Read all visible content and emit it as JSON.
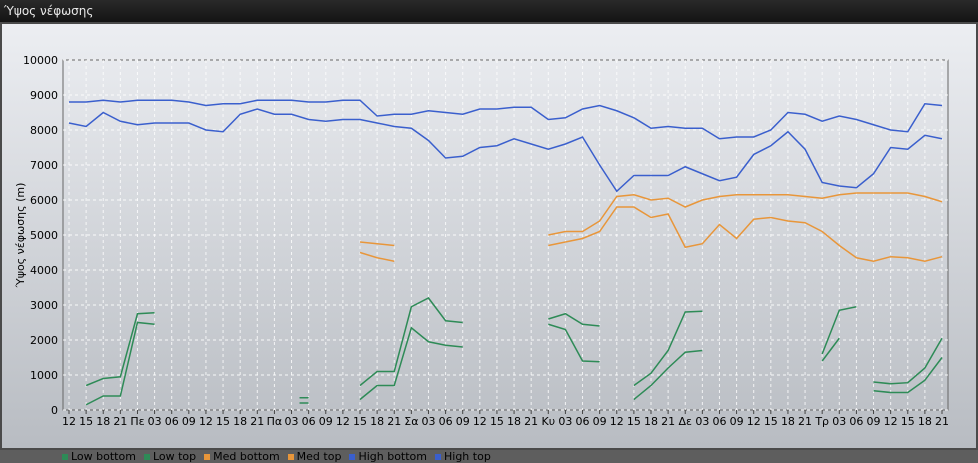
{
  "window": {
    "title": "Ύψος νέφωσης"
  },
  "chart_data": {
    "type": "line",
    "title": "",
    "ylabel": "Ύψος νέφωσης (m)",
    "xlabel": "",
    "ylim": [
      0,
      10000
    ],
    "yticks": [
      0,
      1000,
      2000,
      3000,
      4000,
      5000,
      6000,
      7000,
      8000,
      9000,
      10000
    ],
    "grid": true,
    "legend_position": "bottom",
    "categories": [
      "12",
      "15",
      "18",
      "21",
      "Πε",
      "03",
      "06",
      "09",
      "12",
      "15",
      "18",
      "21",
      "Πα",
      "03",
      "06",
      "09",
      "12",
      "15",
      "18",
      "21",
      "Σα",
      "03",
      "06",
      "09",
      "12",
      "15",
      "18",
      "21",
      "Κυ",
      "03",
      "06",
      "09",
      "12",
      "15",
      "18",
      "21",
      "Δε",
      "03",
      "06",
      "09",
      "12",
      "15",
      "18",
      "21",
      "Τρ",
      "03",
      "06",
      "09",
      "12",
      "15",
      "18",
      "21"
    ],
    "series": [
      {
        "name": "Low bottom",
        "color": "#2e8b57",
        "values": [
          null,
          150,
          400,
          400,
          2500,
          2450,
          null,
          null,
          null,
          null,
          null,
          null,
          null,
          null,
          null,
          null,
          null,
          300,
          700,
          700,
          2350,
          1950,
          1850,
          1800,
          null,
          null,
          null,
          null,
          2450,
          2300,
          1400,
          1380,
          null,
          300,
          700,
          1200,
          1650,
          1700,
          null,
          null,
          null,
          null,
          null,
          null,
          1400,
          2050,
          null,
          null,
          null,
          null,
          null,
          null
        ]
      },
      {
        "name": "Low top",
        "color": "#2e8b57",
        "values": [
          null,
          700,
          900,
          950,
          2750,
          2780,
          null,
          null,
          null,
          null,
          null,
          null,
          null,
          null,
          null,
          null,
          null,
          700,
          1100,
          1100,
          2950,
          3200,
          2550,
          2500,
          null,
          null,
          null,
          null,
          2600,
          2750,
          2450,
          2400,
          null,
          700,
          1050,
          1700,
          2800,
          2820,
          null,
          null,
          null,
          null,
          null,
          null,
          1600,
          2850,
          2950,
          null,
          null,
          null,
          null,
          null
        ]
      },
      {
        "name": "Low bottom",
        "color": "#2e8b57",
        "values": [
          null,
          null,
          null,
          null,
          null,
          null,
          null,
          null,
          null,
          null,
          null,
          null,
          null,
          null,
          null,
          null,
          null,
          null,
          null,
          null,
          null,
          null,
          null,
          null,
          null,
          null,
          null,
          null,
          null,
          null,
          null,
          null,
          null,
          null,
          null,
          null,
          null,
          null,
          null,
          null,
          null,
          null,
          null,
          null,
          null,
          null,
          null,
          550,
          500,
          500,
          850,
          1500
        ]
      },
      {
        "name": "Low top",
        "color": "#2e8b57",
        "values": [
          null,
          null,
          null,
          null,
          null,
          null,
          null,
          null,
          null,
          null,
          null,
          null,
          null,
          null,
          null,
          null,
          null,
          null,
          null,
          null,
          null,
          null,
          null,
          null,
          null,
          null,
          null,
          null,
          null,
          null,
          null,
          null,
          null,
          null,
          null,
          null,
          null,
          null,
          null,
          null,
          null,
          null,
          null,
          null,
          null,
          null,
          null,
          800,
          750,
          780,
          1200,
          2050
        ]
      },
      {
        "name": "Low bottom",
        "color": "#2e8b57",
        "values": [
          null,
          null,
          null,
          null,
          null,
          null,
          null,
          null,
          null,
          null,
          null,
          null,
          null,
          null,
          null,
          null,
          null,
          null,
          null,
          null,
          null,
          null,
          null,
          null,
          null,
          null,
          null,
          null,
          null,
          null,
          null,
          null,
          null,
          null,
          null,
          null,
          null,
          null,
          null,
          null,
          null,
          null,
          null,
          null,
          null,
          null,
          null,
          null,
          null,
          null,
          null,
          null
        ]
      },
      {
        "name": "Low top",
        "color": "#2e8b57",
        "values": [
          null,
          null,
          null,
          null,
          null,
          null,
          null,
          null,
          null,
          null,
          null,
          null,
          null,
          null,
          null,
          null,
          null,
          null,
          null,
          null,
          null,
          null,
          null,
          null,
          null,
          null,
          null,
          null,
          null,
          null,
          null,
          null,
          null,
          null,
          null,
          null,
          null,
          null,
          null,
          null,
          null,
          null,
          null,
          null,
          null,
          null,
          null,
          null,
          null,
          null,
          null,
          null
        ]
      },
      {
        "name": "Low bottom",
        "color": "#2e8b57",
        "values": [
          null,
          null,
          null,
          null,
          null,
          null,
          null,
          null,
          null,
          null,
          null,
          null,
          null,
          null,
          null,
          null,
          null,
          null,
          null,
          null,
          null,
          null,
          null,
          null,
          null,
          null,
          null,
          null,
          null,
          null,
          null,
          null,
          null,
          null,
          null,
          null,
          null,
          null,
          null,
          null,
          null,
          null,
          null,
          null,
          null,
          null,
          null,
          null,
          null,
          null,
          null,
          null
        ]
      },
      {
        "name": "Med bottom",
        "color": "#e8963a",
        "values": [
          null,
          null,
          null,
          null,
          null,
          null,
          null,
          null,
          null,
          null,
          null,
          null,
          null,
          null,
          null,
          null,
          null,
          4500,
          4350,
          4250,
          null,
          null,
          null,
          null,
          null,
          null,
          null,
          null,
          4700,
          4800,
          4900,
          5100,
          5800,
          5800,
          5500,
          5600,
          4650,
          4750,
          5300,
          4900,
          5450,
          5500,
          5400,
          5350,
          5100,
          4700,
          4350,
          4250,
          4380,
          4350,
          4250,
          4380
        ]
      },
      {
        "name": "Med top",
        "color": "#e8963a",
        "values": [
          null,
          null,
          null,
          null,
          null,
          null,
          null,
          null,
          null,
          null,
          null,
          null,
          null,
          null,
          null,
          null,
          null,
          4800,
          4750,
          4700,
          null,
          null,
          null,
          null,
          null,
          null,
          null,
          null,
          5000,
          5100,
          5100,
          5400,
          6100,
          6150,
          6000,
          6050,
          5800,
          6000,
          6100,
          6150,
          6150,
          6150,
          6150,
          6100,
          6050,
          6150,
          6200,
          6200,
          6200,
          6200,
          6100,
          5950
        ]
      },
      {
        "name": "High bottom",
        "color": "#3a5fcd",
        "values": [
          8200,
          8100,
          8500,
          8250,
          8150,
          8200,
          8200,
          8200,
          8000,
          7950,
          8450,
          8600,
          8450,
          8450,
          8300,
          8250,
          8300,
          8300,
          8200,
          8100,
          8050,
          7700,
          7200,
          7250,
          7500,
          7550,
          7750,
          7600,
          7450,
          7600,
          7800,
          7000,
          6250,
          6700,
          6700,
          6700,
          6950,
          6750,
          6550,
          6650,
          7300,
          7550,
          7950,
          7450,
          6500,
          6400,
          6350,
          6750,
          7500,
          7450,
          7850,
          7750
        ]
      },
      {
        "name": "High top",
        "color": "#3a5fcd",
        "values": [
          8800,
          8800,
          8850,
          8800,
          8850,
          8850,
          8850,
          8800,
          8700,
          8750,
          8750,
          8850,
          8850,
          8850,
          8800,
          8800,
          8850,
          8850,
          8400,
          8450,
          8450,
          8550,
          8500,
          8450,
          8600,
          8600,
          8650,
          8650,
          8300,
          8350,
          8600,
          8700,
          8550,
          8350,
          8050,
          8100,
          8050,
          8050,
          7750,
          7800,
          7800,
          8000,
          8500,
          8450,
          8250,
          8400,
          8300,
          8150,
          8000,
          7950,
          8750,
          8700
        ]
      }
    ],
    "extra_segments": [
      {
        "name": "Low bottom",
        "color": "#2e8b57",
        "x_index": [
          13,
          14
        ],
        "values": [
          200,
          200
        ]
      },
      {
        "name": "Low top",
        "color": "#2e8b57",
        "x_index": [
          13,
          14
        ],
        "values": [
          350,
          350
        ]
      }
    ]
  },
  "legend": [
    {
      "label": "Low bottom",
      "color": "#2e8b57"
    },
    {
      "label": "Low top",
      "color": "#2e8b57"
    },
    {
      "label": "Med bottom",
      "color": "#e8963a"
    },
    {
      "label": "Med top",
      "color": "#e8963a"
    },
    {
      "label": "High bottom",
      "color": "#3a5fcd"
    },
    {
      "label": "High top",
      "color": "#3a5fcd"
    }
  ]
}
